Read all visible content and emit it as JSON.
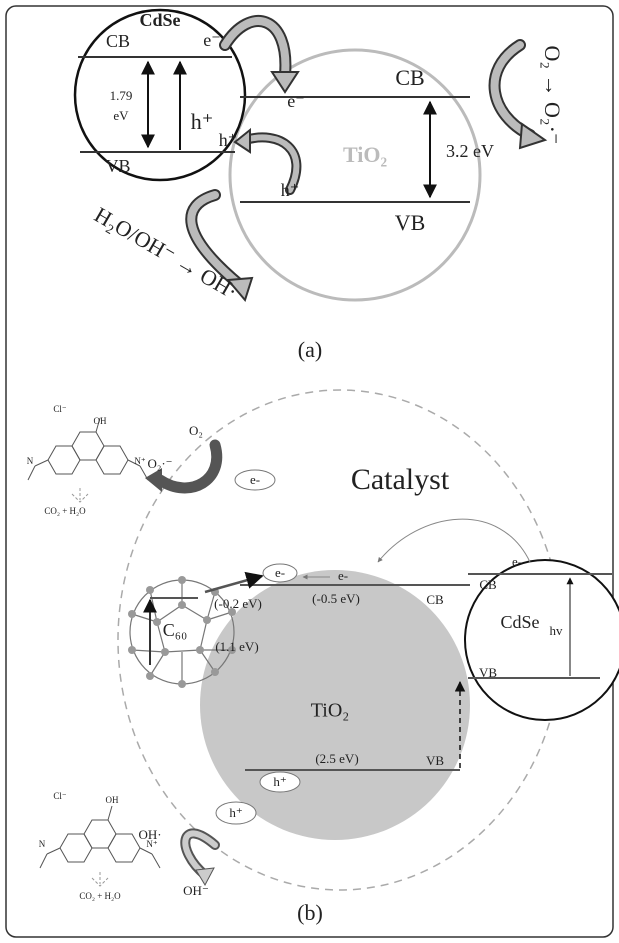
{
  "panel_a": {
    "label": "(a)",
    "cdse": "CdSe",
    "cdse_cb": "CB",
    "cdse_vb": "VB",
    "cdse_e": "e⁻",
    "gap_value": "1.79",
    "gap_unit": "eV",
    "h1": "h⁺",
    "h2": "h⁺",
    "tio2": "TiO₂",
    "tio2_cb": "CB",
    "tio2_vb": "VB",
    "tio2_e": "e⁻",
    "tio2_gap": "3.2 eV",
    "tio2_h": "h⁺",
    "oxygen": "O₂ → O₂·⁻",
    "water": "H₂O/OH⁻ → OH·"
  },
  "panel_b": {
    "label": "(b)",
    "catalyst": "Catalyst",
    "top_dye": {
      "counterion": "Cl⁻",
      "oh": "OH",
      "n1": "N",
      "n2": "N⁺",
      "product": "CO₂ + H₂O"
    },
    "superoxide": "O₂·⁻",
    "oxygen": "O₂",
    "electron_top": "e-",
    "c60": "C₆₀",
    "c60_cb": "(-0.2 eV)",
    "c60_gap": "(1.1 eV)",
    "tio2": "TiO₂",
    "tio2_cb_energy": "(-0.5 eV)",
    "tio2_cb": "CB",
    "tio2_vb_energy": "(2.5 eV)",
    "tio2_vb": "VB",
    "electron_c60": "e-",
    "electron_tio2": "e-",
    "hole_tio2": "h⁺",
    "cdse": "CdSe",
    "cdse_cb": "CB",
    "cdse_vb": "VB",
    "cdse_e": "e-",
    "hv": "hv",
    "hole_bottom": "h⁺",
    "hydroxyl_radical": "OH·",
    "hydroxide": "OH⁻",
    "bottom_dye": {
      "counterion": "Cl⁻",
      "oh": "OH",
      "n1": "N",
      "n2": "N⁺",
      "product": "CO₂ + H₂O"
    }
  }
}
